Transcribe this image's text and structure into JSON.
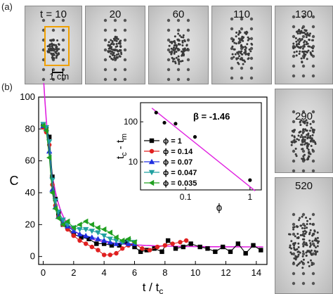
{
  "panels": {
    "a": "(a)",
    "b": "(b)"
  },
  "frames": [
    {
      "t_label": "t = 10"
    },
    {
      "t_label": "20"
    },
    {
      "t_label": "60"
    },
    {
      "t_label": "110"
    },
    {
      "t_label": "130"
    },
    {
      "t_label": "290"
    },
    {
      "t_label": "520"
    }
  ],
  "scale_bar": {
    "label": "1 cm"
  },
  "colors": {
    "fit": "#e020e0",
    "phi_1": "#000000",
    "phi_014": "#e02020",
    "phi_007": "#2030e0",
    "phi_0047": "#20a0a0",
    "phi_0035": "#20a020"
  },
  "chart_data": [
    {
      "type": "line",
      "xlabel": "t / t",
      "xlabel_sub": "c",
      "ylabel": "C",
      "xlim": [
        -0.3,
        14.7
      ],
      "ylim": [
        -5,
        100
      ],
      "xticks": [
        0,
        2,
        4,
        6,
        8,
        10,
        12,
        14
      ],
      "yticks": [
        0,
        20,
        40,
        60,
        80,
        100
      ],
      "legend_position": "inside-right (within inset area)",
      "fit_curve": {
        "name": "fit",
        "description_visible": false
      },
      "series": [
        {
          "name": "ϕ = 1",
          "color": "#000000",
          "marker": "square",
          "x": [
            0.0,
            0.2,
            0.4,
            0.6,
            0.8,
            1.0,
            1.3,
            1.6,
            2.0,
            2.5,
            3.0,
            3.5,
            4.0,
            4.5,
            5.0,
            5.5,
            6.0,
            6.4,
            6.8,
            7.3,
            7.8,
            8.2,
            8.7,
            9.2,
            9.7,
            10.3,
            10.8,
            11.3,
            11.8,
            12.3,
            12.8,
            13.3,
            13.8,
            14.3
          ],
          "y": [
            82,
            80,
            75,
            50,
            36,
            27,
            20,
            18,
            14,
            12,
            11,
            8,
            8,
            7,
            7,
            9,
            6,
            3,
            4,
            5,
            3,
            10,
            5,
            6,
            8,
            6,
            5,
            3,
            6,
            3,
            8,
            2,
            7,
            4
          ]
        },
        {
          "name": "ϕ = 0.14",
          "color": "#e02020",
          "marker": "circle",
          "x": [
            0.0,
            0.2,
            0.4,
            0.6,
            0.8,
            1.0,
            1.3,
            1.6,
            2.0,
            2.4,
            2.8,
            3.2,
            3.6,
            4.0,
            4.4,
            4.8,
            5.2,
            5.6,
            6.0,
            6.5,
            7.0,
            7.5,
            8.0,
            8.5,
            9.0,
            9.4
          ],
          "y": [
            81,
            78,
            70,
            45,
            32,
            25,
            20,
            17,
            13,
            10,
            8,
            6,
            4,
            1,
            1,
            2,
            5,
            7,
            8,
            5,
            4,
            6,
            7,
            8,
            9,
            10
          ]
        },
        {
          "name": "ϕ = 0.07",
          "color": "#2030e0",
          "marker": "triangle",
          "x": [
            0.0,
            0.2,
            0.4,
            0.6,
            0.8,
            1.0,
            1.3,
            1.6,
            2.0,
            2.4,
            2.8,
            3.2,
            3.6,
            4.0,
            4.4,
            4.8,
            5.2,
            5.6,
            6.0
          ],
          "y": [
            82,
            80,
            66,
            42,
            31,
            25,
            21,
            19,
            16,
            14,
            13,
            12,
            11,
            10,
            9,
            8,
            9,
            8,
            8
          ]
        },
        {
          "name": "ϕ = 0.047",
          "color": "#20a0a0",
          "marker": "triangle-down",
          "x": [
            0.0,
            0.2,
            0.4,
            0.6,
            0.8,
            1.0,
            1.3,
            1.6,
            2.0,
            2.4,
            2.8,
            3.2,
            3.6,
            4.0,
            4.4,
            4.8,
            5.2,
            5.6,
            6.0
          ],
          "y": [
            83,
            81,
            72,
            48,
            35,
            28,
            23,
            20,
            18,
            17,
            17,
            16,
            15,
            13,
            11,
            10,
            9,
            10,
            9
          ]
        },
        {
          "name": "ϕ = 0.035",
          "color": "#20a020",
          "marker": "triangle-left",
          "x": [
            0.0,
            0.2,
            0.4,
            0.6,
            0.8,
            1.0,
            1.3,
            1.6,
            2.0,
            2.4,
            2.8,
            3.2,
            3.6,
            4.0,
            4.4,
            4.8,
            5.2,
            5.6,
            6.0
          ],
          "y": [
            82,
            79,
            62,
            40,
            30,
            24,
            20,
            22,
            18,
            20,
            22,
            20,
            18,
            17,
            15,
            12,
            10,
            11,
            9
          ]
        }
      ]
    },
    {
      "type": "scatter",
      "ylabel": "t",
      "ylabel_sub1": "c",
      "ylabel_mid": " - t",
      "ylabel_sub2": "m",
      "xlabel": "ϕ",
      "xscale": "log",
      "yscale": "log",
      "xlim": [
        0.02,
        1.5
      ],
      "ylim": [
        2,
        300
      ],
      "xticks": [
        0.1,
        1
      ],
      "yticks": [
        10,
        100
      ],
      "annotation": "β = -1.46",
      "points": {
        "x": [
          0.035,
          0.047,
          0.07,
          0.14,
          1.0
        ],
        "y": [
          170,
          95,
          90,
          42,
          3.5
        ]
      },
      "fit_line": {
        "x": [
          0.03,
          1.2
        ],
        "y": [
          220,
          1.9
        ]
      }
    }
  ]
}
